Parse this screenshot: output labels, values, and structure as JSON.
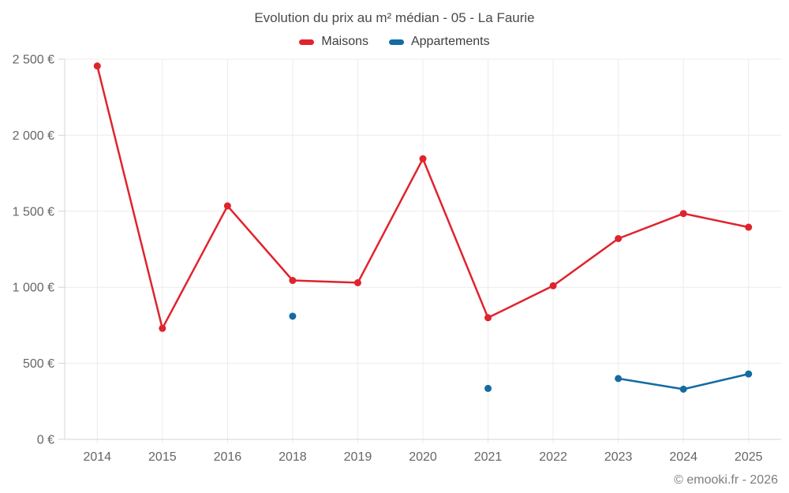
{
  "chart": {
    "title": "Evolution du prix au m² médian - 05 - La Faurie",
    "copyright": "© emooki.fr - 2026"
  },
  "legend": {
    "items": [
      {
        "label": "Maisons",
        "color": "#e0232d"
      },
      {
        "label": "Appartements",
        "color": "#136ba2"
      }
    ]
  },
  "chart_data": {
    "type": "line",
    "title": "Evolution du prix au m² médian - 05 - La Faurie",
    "categories": [
      "2014",
      "2015",
      "2016",
      "2018",
      "2019",
      "2020",
      "2021",
      "2022",
      "2023",
      "2024",
      "2025"
    ],
    "series": [
      {
        "name": "Maisons",
        "color": "#e0232d",
        "values": [
          2455,
          730,
          1535,
          1045,
          1030,
          1845,
          800,
          1010,
          1320,
          1485,
          1395
        ]
      },
      {
        "name": "Appartements",
        "color": "#136ba2",
        "values": [
          null,
          null,
          null,
          810,
          null,
          null,
          335,
          null,
          400,
          330,
          430
        ]
      }
    ],
    "xlabel": "",
    "ylabel": "",
    "ylim": [
      0,
      2500
    ],
    "ytick_step": 500,
    "ytick_labels": [
      "0 €",
      "500 €",
      "1 000 €",
      "1 500 €",
      "2 000 €",
      "2 500 €"
    ],
    "grid": true,
    "legend_position": "top",
    "currency": "€"
  },
  "colors": {
    "grid": "#ececec",
    "axis": "#d4d4d4",
    "tick_label": "#666666",
    "title": "#4a4a4a",
    "legend_text": "#3d3d3d",
    "copyright": "#7d7d7d",
    "background": "#ffffff"
  }
}
